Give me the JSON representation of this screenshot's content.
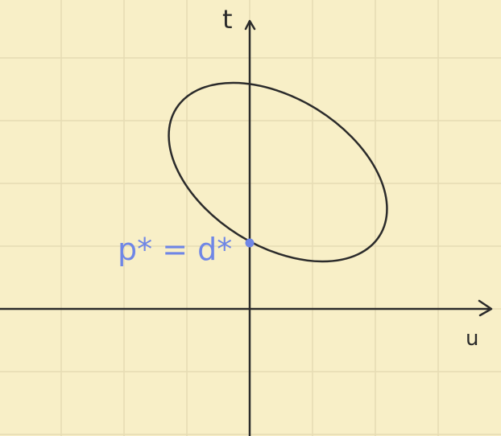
{
  "diagram": {
    "axis_labels": {
      "vertical": "t",
      "horizontal": "u"
    },
    "annotation": "p* = d*",
    "colors": {
      "background": "#f8efc7",
      "grid": "#e6dcb4",
      "ink": "#2b2b2b",
      "highlight": "#6f86e6"
    },
    "shapes": [
      "ellipse",
      "intersection-point"
    ]
  }
}
